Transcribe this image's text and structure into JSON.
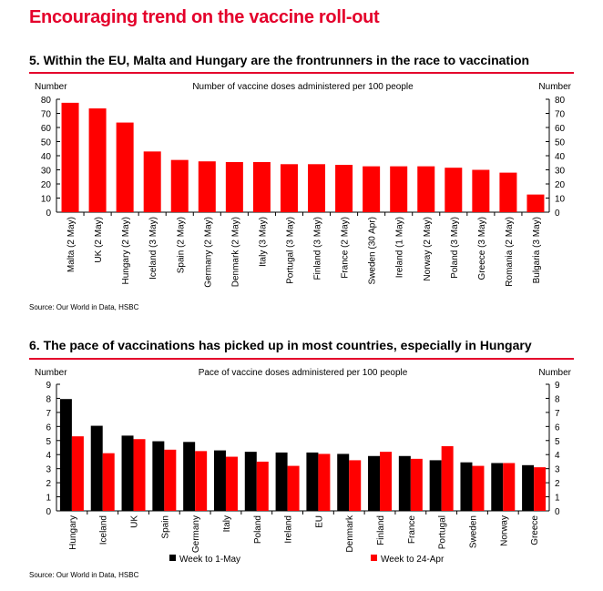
{
  "page": {
    "title": "Encouraging trend on the vaccine roll-out"
  },
  "charts": [
    {
      "title": "5.  Within the EU, Malta and Hungary are the frontrunners in the race to vaccination",
      "source": "Source: Our World in Data, HSBC"
    },
    {
      "title": "6. The pace of vaccinations has picked up in most countries, especially in Hungary",
      "source": "Source: Our World in Data, HSBC"
    }
  ],
  "chart_data": [
    {
      "type": "bar",
      "title": "Number of vaccine doses administered per 100 people",
      "ylabel_left": "Number",
      "ylabel_right": "Number",
      "ylim": [
        0,
        80
      ],
      "yticks": [
        0,
        10,
        20,
        30,
        40,
        50,
        60,
        70,
        80
      ],
      "grid": false,
      "categories": [
        "Malta (2 May)",
        "UK (2 May)",
        "Hungary (2 May)",
        "Iceland (3 May)",
        "Spain (2 May)",
        "Germany (2 May)",
        "Denmark (2 May)",
        "Italy (3 May)",
        "Portugal (3 May)",
        "Finland (3 May)",
        "France (2 May)",
        "Sweden (30 Apr)",
        "Ireland (1 May)",
        "Norway (2 May)",
        "Poland (3 May)",
        "Greece (3 May)",
        "Romania (2 May)",
        "Bulgaria (3 May)"
      ],
      "series": [
        {
          "values": [
            77.5,
            73.5,
            63.5,
            43,
            37,
            36,
            35.5,
            35.5,
            34,
            34,
            33.5,
            32.5,
            32.5,
            32.5,
            31.5,
            30,
            28,
            12.5
          ],
          "color": "#ff0000"
        }
      ]
    },
    {
      "type": "bar",
      "title": "Pace of vaccine doses administered per 100 people",
      "ylabel_left": "Number",
      "ylabel_right": "Number",
      "ylim": [
        0,
        9
      ],
      "yticks": [
        0,
        1,
        2,
        3,
        4,
        5,
        6,
        7,
        8,
        9
      ],
      "grid": false,
      "legend_position": "bottom",
      "categories": [
        "Hungary",
        "Iceland",
        "UK",
        "Spain",
        "Germany",
        "Italy",
        "Poland",
        "Ireland",
        "EU",
        "Denmark",
        "Finland",
        "France",
        "Portugal",
        "Sweden",
        "Norway",
        "Greece"
      ],
      "series": [
        {
          "name": "Week to 1-May",
          "color": "#000000",
          "values": [
            7.95,
            6.05,
            5.35,
            4.95,
            4.9,
            4.3,
            4.2,
            4.15,
            4.15,
            4.05,
            3.9,
            3.9,
            3.6,
            3.45,
            3.4,
            3.25
          ]
        },
        {
          "name": "Week to 24-Apr",
          "color": "#ff0000",
          "values": [
            5.3,
            4.1,
            5.1,
            4.35,
            4.25,
            3.85,
            3.5,
            3.2,
            4.05,
            3.6,
            4.2,
            3.7,
            4.6,
            3.2,
            3.4,
            3.1
          ]
        }
      ]
    }
  ]
}
